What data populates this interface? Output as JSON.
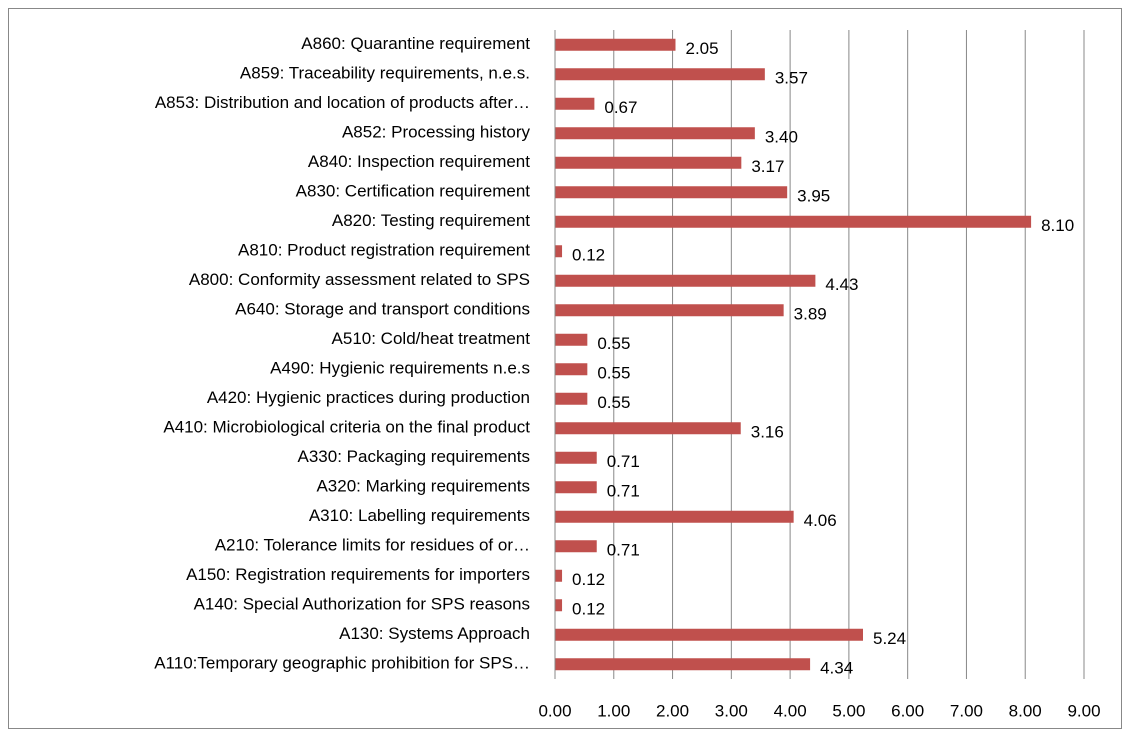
{
  "chart_data": {
    "type": "bar",
    "orientation": "horizontal",
    "categories": [
      "A860: Quarantine requirement",
      "A859: Traceability requirements, n.e.s.",
      "A853: Distribution and location of products after…",
      "A852: Processing history",
      "A840: Inspection requirement",
      "A830: Certification requirement",
      "A820: Testing requirement",
      "A810: Product registration requirement",
      "A800: Conformity assessment related to SPS",
      "A640: Storage and transport conditions",
      "A510: Cold/heat treatment",
      "A490: Hygienic requirements n.e.s",
      "A420: Hygienic practices during production",
      "A410: Microbiological criteria on the final product",
      "A330: Packaging requirements",
      "A320: Marking requirements",
      "A310: Labelling requirements",
      "A210: Tolerance limits for residues of or…",
      "A150: Registration requirements for importers",
      "A140: Special Authorization for SPS reasons",
      "A130: Systems Approach",
      "A110:Temporary geographic prohibition for SPS…"
    ],
    "values": [
      2.05,
      3.57,
      0.67,
      3.4,
      3.17,
      3.95,
      8.1,
      0.12,
      4.43,
      3.89,
      0.55,
      0.55,
      0.55,
      3.16,
      0.71,
      0.71,
      4.06,
      0.71,
      0.12,
      0.12,
      5.24,
      4.34
    ],
    "value_labels": [
      "2.05",
      "3.57",
      "0.67",
      "3.40",
      "3.17",
      "3.95",
      "8.10",
      "0.12",
      "4.43",
      "3.89",
      "0.55",
      "0.55",
      "0.55",
      "3.16",
      "0.71",
      "0.71",
      "4.06",
      "0.71",
      "0.12",
      "0.12",
      "5.24",
      "4.34"
    ],
    "color": "#c0504d",
    "xlim": [
      0,
      9
    ],
    "xticks": [
      {
        "value": 0,
        "label": "0.00"
      },
      {
        "value": 1,
        "label": "1.00"
      },
      {
        "value": 2,
        "label": "2.00"
      },
      {
        "value": 3,
        "label": "3.00"
      },
      {
        "value": 4,
        "label": "4.00"
      },
      {
        "value": 5,
        "label": "5.00"
      },
      {
        "value": 6,
        "label": "6.00"
      },
      {
        "value": 7,
        "label": "7.00"
      },
      {
        "value": 8,
        "label": "8.00"
      },
      {
        "value": 9,
        "label": "9.00"
      }
    ],
    "grid": true
  }
}
